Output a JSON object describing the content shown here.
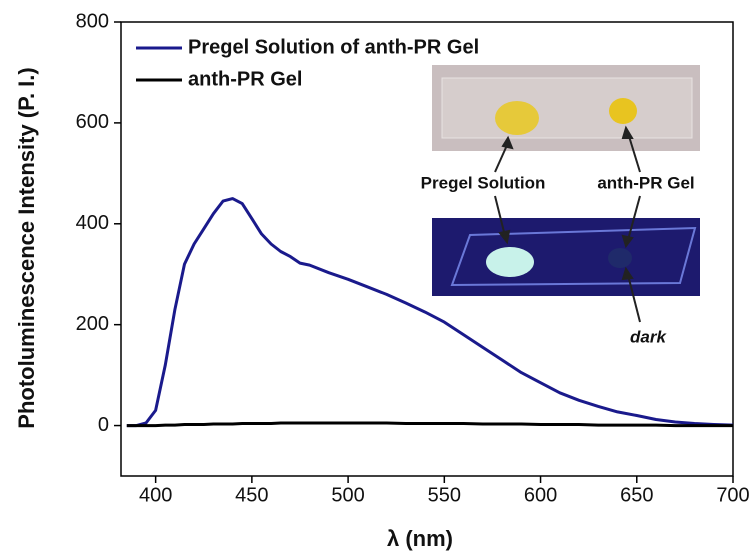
{
  "chart_data": {
    "type": "line",
    "xlabel": "λ (nm)",
    "ylabel": "Photoluminescence Intensity (P. I.)",
    "x": [
      385,
      390,
      395,
      400,
      405,
      410,
      415,
      420,
      425,
      430,
      435,
      440,
      445,
      450,
      455,
      460,
      465,
      470,
      475,
      480,
      490,
      500,
      510,
      520,
      530,
      540,
      550,
      560,
      570,
      580,
      590,
      600,
      610,
      620,
      630,
      640,
      650,
      660,
      670,
      680,
      690,
      700
    ],
    "series": [
      {
        "name": "Pregel Solution of anth-PR Gel",
        "color": "#1a1a8c",
        "values": [
          0,
          0,
          5,
          30,
          120,
          230,
          320,
          360,
          390,
          420,
          445,
          450,
          440,
          410,
          380,
          360,
          345,
          335,
          322,
          318,
          303,
          290,
          275,
          260,
          243,
          225,
          205,
          180,
          155,
          130,
          105,
          85,
          65,
          50,
          38,
          27,
          20,
          12,
          7,
          4,
          2,
          1
        ]
      },
      {
        "name": "anth-PR Gel",
        "color": "#000000",
        "values": [
          0,
          0,
          0,
          0,
          1,
          1,
          2,
          2,
          2,
          3,
          3,
          3,
          4,
          4,
          4,
          4,
          5,
          5,
          5,
          5,
          5,
          5,
          5,
          5,
          4,
          4,
          4,
          4,
          3,
          3,
          3,
          2,
          2,
          2,
          1,
          1,
          1,
          1,
          0,
          0,
          0,
          0
        ]
      }
    ],
    "xlim": [
      382,
      700
    ],
    "xticks": [
      400,
      450,
      500,
      550,
      600,
      650,
      700
    ],
    "ylim": [
      -100,
      800
    ],
    "yticks": [
      0,
      200,
      400,
      600,
      800
    ],
    "legend": "top-left",
    "annotations": [
      "Pregel Solution",
      "anth-PR Gel",
      "dark"
    ]
  }
}
